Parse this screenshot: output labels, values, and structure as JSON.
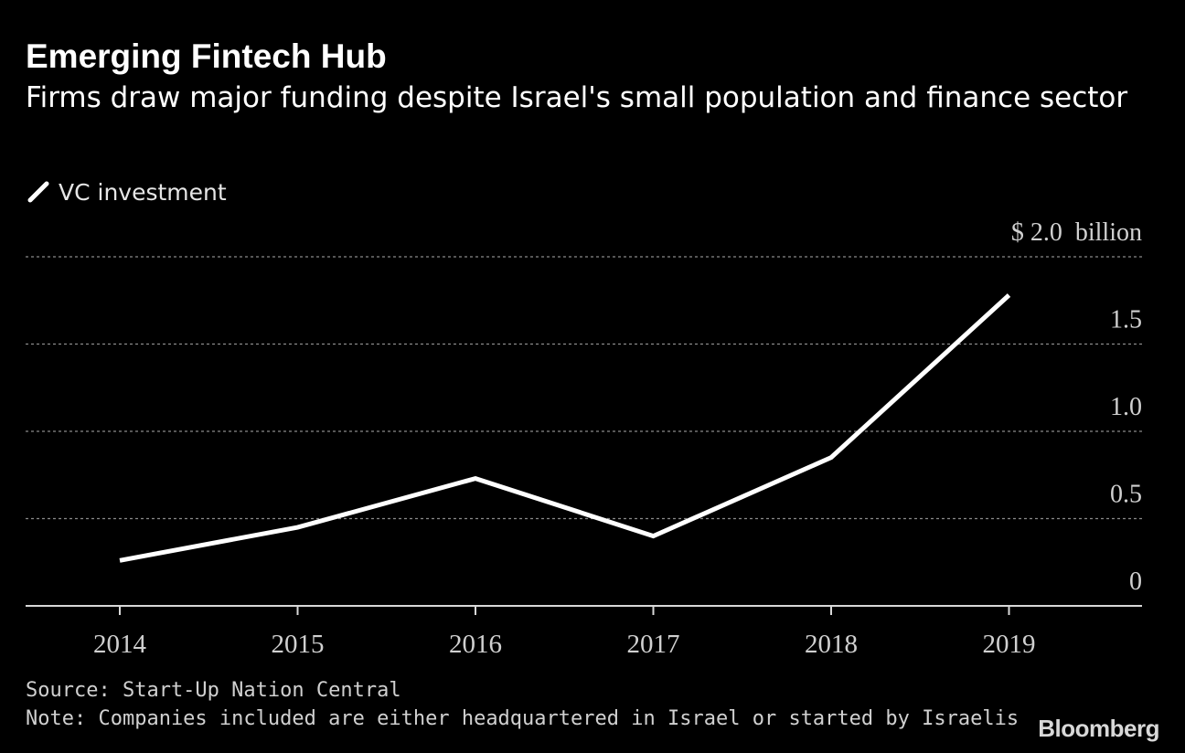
{
  "header": {
    "title": "Emerging Fintech Hub",
    "subtitle": "Firms draw major funding despite Israel's small population and finance sector"
  },
  "legend": {
    "items": [
      {
        "label": "VC investment",
        "color": "#ffffff"
      }
    ]
  },
  "chart_data": {
    "type": "line",
    "title": "Emerging Fintech Hub",
    "subtitle": "Firms draw major funding despite Israel's small population and finance sector",
    "xlabel": "",
    "ylabel": "",
    "x": [
      "2014",
      "2015",
      "2016",
      "2017",
      "2018",
      "2019"
    ],
    "series": [
      {
        "name": "VC investment",
        "color": "#ffffff",
        "values": [
          0.26,
          0.45,
          0.73,
          0.4,
          0.85,
          1.78
        ]
      }
    ],
    "ylim": [
      0,
      2.0
    ],
    "yticks": [
      {
        "value": 0,
        "label": "0"
      },
      {
        "value": 0.5,
        "label": "0.5"
      },
      {
        "value": 1.0,
        "label": "1.0"
      },
      {
        "value": 1.5,
        "label": "1.5"
      },
      {
        "value": 2.0,
        "label": "$ 2.0  billion"
      }
    ],
    "grid": true,
    "axis_side": "right",
    "legend_position": "top-left"
  },
  "footer": {
    "source": "Source: Start-Up Nation Central",
    "note": "Note: Companies included are either headquartered in Israel or started by Israelis",
    "brand": "Bloomberg"
  }
}
